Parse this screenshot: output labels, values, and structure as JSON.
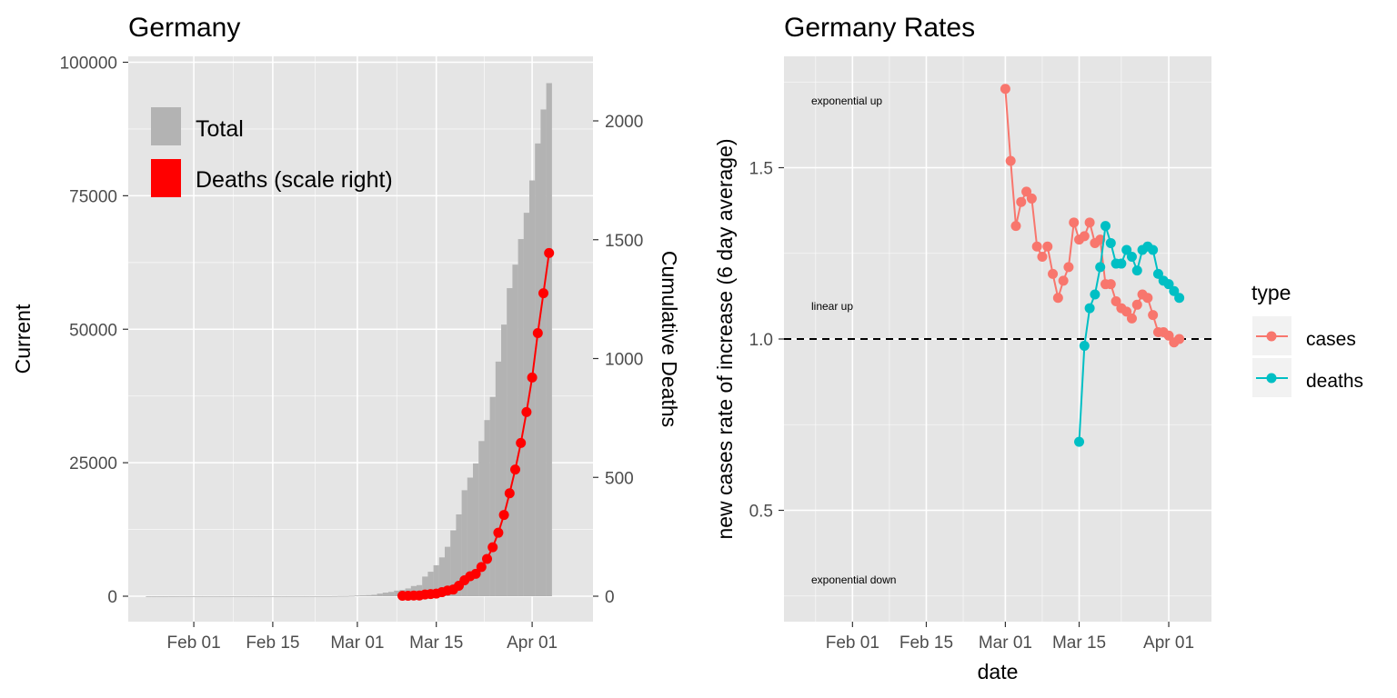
{
  "left_chart": {
    "title": "Germany",
    "y_left_label": "Current",
    "y_right_label": "Cumulative Deaths",
    "legend": {
      "total": "Total",
      "deaths": "Deaths (scale right)"
    },
    "colors": {
      "total": "#b3b3b3",
      "deaths": "#ff0000",
      "panel": "#e5e5e5"
    },
    "y_left_ticks": [
      "0",
      "25000",
      "50000",
      "75000",
      "100000"
    ],
    "y_right_ticks": [
      "0",
      "500",
      "1000",
      "1500",
      "2000"
    ],
    "x_ticks": [
      "Feb 01",
      "Feb 15",
      "Mar 01",
      "Mar 15",
      "Apr 01"
    ]
  },
  "right_chart": {
    "title": "Germany Rates",
    "x_label": "date",
    "y_label": "new cases rate of increase (6 day average)",
    "legend_title": "type",
    "legend": {
      "cases": "cases",
      "deaths": "deaths"
    },
    "colors": {
      "cases": "#f8766d",
      "deaths": "#00bfc4",
      "panel": "#e5e5e5"
    },
    "y_ticks": [
      "0.5",
      "1.0",
      "1.5"
    ],
    "x_ticks": [
      "Feb 01",
      "Feb 15",
      "Mar 01",
      "Mar 15",
      "Apr 01"
    ],
    "annotations": {
      "exp_up": "exponential up",
      "linear_up": "linear up",
      "exp_down": "exponential down"
    }
  },
  "chart_data": [
    {
      "type": "bar",
      "title": "Germany",
      "ylabel": "Current",
      "y2label": "Cumulative Deaths",
      "ylim": [
        -4600,
        100000
      ],
      "y2lim": [
        -100,
        2200
      ],
      "x_start_date": "2020-01-24",
      "series": [
        {
          "name": "Total",
          "kind": "bar",
          "start_date": "2020-01-24",
          "values": [
            5,
            5,
            5,
            5,
            8,
            10,
            12,
            14,
            16,
            16,
            16,
            16,
            16,
            16,
            16,
            16,
            16,
            16,
            16,
            16,
            16,
            16,
            16,
            16,
            16,
            16,
            16,
            16,
            16,
            16,
            16,
            16,
            16,
            27,
            46,
            48,
            79,
            130,
            159,
            196,
            262,
            482,
            670,
            799,
            1040,
            1176,
            1457,
            1908,
            2078,
            3675,
            4585,
            5795,
            7272,
            9257,
            12327,
            15320,
            19848,
            22213,
            24873,
            29056,
            32986,
            37323,
            43938,
            50871,
            57695,
            62095,
            66885,
            71808,
            77872,
            84794,
            91159,
            96092
          ]
        },
        {
          "name": "Deaths (scale right)",
          "kind": "line",
          "start_date": "2020-03-09",
          "values": [
            2,
            2,
            3,
            3,
            7,
            9,
            11,
            17,
            24,
            28,
            44,
            67,
            84,
            94,
            123,
            157,
            206,
            267,
            342,
            433,
            533,
            645,
            775,
            920,
            1107,
            1275,
            1444
          ]
        }
      ]
    },
    {
      "type": "line",
      "title": "Germany Rates",
      "xlabel": "date",
      "ylabel": "new cases rate of increase (6 day average)",
      "ylim": [
        0.2,
        1.8
      ],
      "x_range": [
        "2020-01-19",
        "2020-04-06"
      ],
      "reference_line_y": 1.0,
      "series": [
        {
          "name": "cases",
          "start_date": "2020-03-01",
          "values": [
            1.73,
            1.52,
            1.33,
            1.4,
            1.43,
            1.41,
            1.27,
            1.24,
            1.27,
            1.19,
            1.12,
            1.17,
            1.21,
            1.34,
            1.29,
            1.3,
            1.34,
            1.28,
            1.29,
            1.16,
            1.16,
            1.11,
            1.09,
            1.08,
            1.06,
            1.1,
            1.13,
            1.12,
            1.07,
            1.02,
            1.02,
            1.01,
            0.99,
            1.0
          ]
        },
        {
          "name": "deaths",
          "start_date": "2020-03-15",
          "values": [
            0.7,
            0.98,
            1.09,
            1.13,
            1.21,
            1.33,
            1.28,
            1.22,
            1.22,
            1.26,
            1.24,
            1.2,
            1.26,
            1.27,
            1.26,
            1.19,
            1.17,
            1.16,
            1.14,
            1.12
          ]
        }
      ]
    }
  ]
}
